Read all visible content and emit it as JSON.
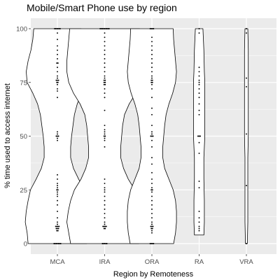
{
  "chart_data": {
    "type": "violin",
    "title": "Mobile/Smart Phone use by region",
    "xlabel": "Region by Remoteness",
    "ylabel": "% time used to access internet",
    "ylim": [
      0,
      100
    ],
    "yticks": [
      0,
      25,
      50,
      75,
      100
    ],
    "grid": true,
    "legend": "none",
    "colors": {
      "panel": "#ebebeb",
      "grid": "#ffffff",
      "violin_fill": "#ffffff",
      "violin_stroke": "#000000",
      "dots": "#000000"
    },
    "categories": [
      "MCA",
      "IRA",
      "ORA",
      "RA",
      "VRA"
    ],
    "series": [
      {
        "category": "MCA",
        "violin_halfwidth": [
          [
            0,
            0.62
          ],
          [
            5,
            0.64
          ],
          [
            10,
            0.68
          ],
          [
            15,
            0.66
          ],
          [
            20,
            0.62
          ],
          [
            25,
            0.57
          ],
          [
            30,
            0.45
          ],
          [
            35,
            0.34
          ],
          [
            40,
            0.28
          ],
          [
            45,
            0.28
          ],
          [
            50,
            0.3
          ],
          [
            55,
            0.33
          ],
          [
            60,
            0.36
          ],
          [
            65,
            0.42
          ],
          [
            70,
            0.52
          ],
          [
            75,
            0.64
          ],
          [
            80,
            0.66
          ],
          [
            85,
            0.62
          ],
          [
            90,
            0.56
          ],
          [
            95,
            0.52
          ],
          [
            100,
            0.5
          ]
        ],
        "points": [
          0,
          0,
          0,
          0,
          0,
          0,
          0,
          6,
          6,
          7,
          7,
          7,
          8,
          8,
          8,
          8,
          9,
          10,
          12,
          15,
          18,
          20,
          22,
          23,
          24,
          25,
          25,
          26,
          27,
          28,
          30,
          32,
          48,
          49,
          50,
          50,
          50,
          51,
          52,
          68,
          71,
          72,
          74,
          75,
          75,
          76,
          76,
          76,
          77,
          78,
          80,
          82,
          84,
          84,
          86,
          88,
          90,
          92,
          95,
          98,
          100,
          100,
          100,
          100,
          100,
          100
        ]
      },
      {
        "category": "IRA",
        "violin_halfwidth": [
          [
            0,
            0.72
          ],
          [
            5,
            0.76
          ],
          [
            10,
            0.8
          ],
          [
            15,
            0.77
          ],
          [
            20,
            0.72
          ],
          [
            25,
            0.64
          ],
          [
            30,
            0.5
          ],
          [
            35,
            0.4
          ],
          [
            40,
            0.34
          ],
          [
            45,
            0.34
          ],
          [
            50,
            0.36
          ],
          [
            55,
            0.38
          ],
          [
            60,
            0.42
          ],
          [
            65,
            0.52
          ],
          [
            70,
            0.66
          ],
          [
            75,
            0.76
          ],
          [
            80,
            0.8
          ],
          [
            85,
            0.8
          ],
          [
            90,
            0.78
          ],
          [
            95,
            0.76
          ],
          [
            100,
            0.74
          ]
        ],
        "points": [
          0,
          0,
          0,
          0,
          0,
          7,
          7,
          8,
          8,
          8,
          8,
          9,
          10,
          12,
          14,
          16,
          18,
          20,
          22,
          24,
          25,
          26,
          28,
          30,
          45,
          48,
          49,
          50,
          50,
          51,
          52,
          53,
          55,
          62,
          68,
          70,
          72,
          74,
          74,
          75,
          75,
          76,
          76,
          77,
          78,
          80,
          82,
          84,
          86,
          88,
          90,
          92,
          94,
          96,
          98,
          100,
          100,
          100,
          100,
          100,
          100,
          100,
          100,
          100
        ]
      },
      {
        "category": "ORA",
        "violin_halfwidth": [
          [
            0,
            0.46
          ],
          [
            5,
            0.5
          ],
          [
            10,
            0.52
          ],
          [
            15,
            0.52
          ],
          [
            20,
            0.5
          ],
          [
            25,
            0.45
          ],
          [
            30,
            0.36
          ],
          [
            35,
            0.27
          ],
          [
            40,
            0.23
          ],
          [
            45,
            0.23
          ],
          [
            50,
            0.25
          ],
          [
            55,
            0.27
          ],
          [
            60,
            0.3
          ],
          [
            65,
            0.36
          ],
          [
            70,
            0.44
          ],
          [
            75,
            0.5
          ],
          [
            80,
            0.52
          ],
          [
            85,
            0.5
          ],
          [
            90,
            0.48
          ],
          [
            95,
            0.46
          ],
          [
            100,
            0.45
          ]
        ],
        "points": [
          0,
          0,
          0,
          0,
          5,
          6,
          7,
          7,
          8,
          8,
          8,
          9,
          10,
          12,
          14,
          16,
          18,
          20,
          22,
          24,
          25,
          25,
          26,
          28,
          30,
          33,
          37,
          40,
          45,
          48,
          50,
          50,
          50,
          51,
          52,
          55,
          60,
          63,
          68,
          72,
          74,
          75,
          75,
          76,
          76,
          77,
          78,
          80,
          82,
          84,
          86,
          88,
          90,
          92,
          94,
          96,
          100,
          100,
          100,
          100
        ]
      },
      {
        "category": "RA",
        "violin_halfwidth": [
          [
            4,
            0.1
          ],
          [
            10,
            0.11
          ],
          [
            20,
            0.11
          ],
          [
            30,
            0.1
          ],
          [
            40,
            0.1
          ],
          [
            50,
            0.12
          ],
          [
            60,
            0.12
          ],
          [
            70,
            0.12
          ],
          [
            75,
            0.12
          ],
          [
            80,
            0.11
          ],
          [
            90,
            0.1
          ],
          [
            100,
            0.08
          ]
        ],
        "points": [
          6,
          7,
          8,
          10,
          12,
          15,
          26,
          29,
          42,
          47,
          50,
          50,
          50,
          60,
          62,
          65,
          68,
          70,
          72,
          74,
          75,
          76,
          78,
          80,
          82,
          98,
          100
        ]
      },
      {
        "category": "VRA",
        "violin_halfwidth": [
          [
            0,
            0.02
          ],
          [
            10,
            0.03
          ],
          [
            20,
            0.03
          ],
          [
            30,
            0.03
          ],
          [
            40,
            0.03
          ],
          [
            50,
            0.04
          ],
          [
            60,
            0.04
          ],
          [
            70,
            0.04
          ],
          [
            80,
            0.04
          ],
          [
            90,
            0.04
          ],
          [
            100,
            0.03
          ]
        ],
        "points": [
          0,
          27,
          51,
          73,
          77,
          98,
          100
        ]
      }
    ]
  }
}
